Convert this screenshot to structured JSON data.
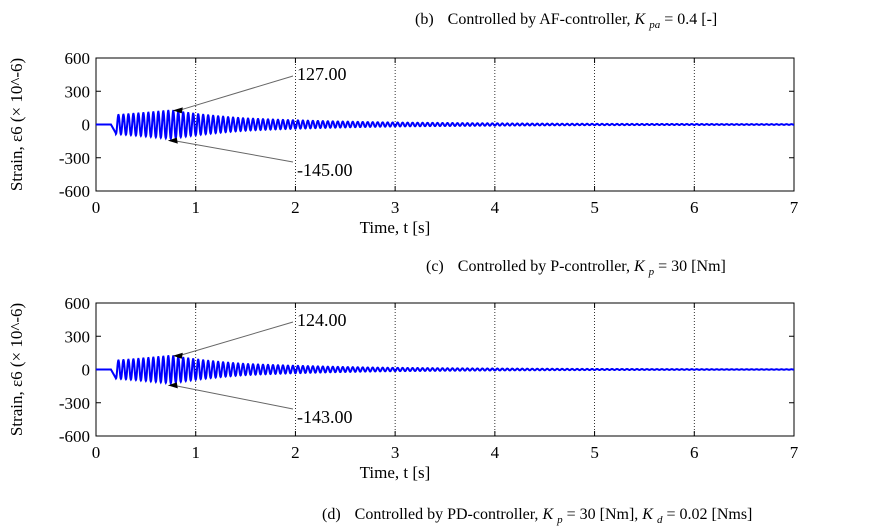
{
  "captions": {
    "top": {
      "label": "(b)",
      "pre": "Controlled by AF-controller, ",
      "k1_main": "K",
      "k1_sub": "pa",
      "k1_val": " = 0.4 [-]"
    },
    "middle": {
      "label": "(c)",
      "pre": "Controlled by P-controller, ",
      "k1_main": "K",
      "k1_sub": "p",
      "k1_val": " = 30 [Nm]"
    },
    "bottom": {
      "label": "(d)",
      "pre": "Controlled by PD-controller, ",
      "k1_main": "K",
      "k1_sub": "p",
      "k1_val": " = 30 [Nm], ",
      "k2_main": "K",
      "k2_sub": "d",
      "k2_val": " = 0.02 [Nms]"
    }
  },
  "chart_data": [
    {
      "type": "line",
      "xlabel": "Time, t [s]",
      "ylabel": "Strain, ε6 (× 10^-6)",
      "xlim": [
        0,
        7
      ],
      "ylim": [
        -600,
        600
      ],
      "xticks": [
        "0",
        "1",
        "2",
        "3",
        "4",
        "5",
        "6",
        "7"
      ],
      "yticks": [
        "600",
        "300",
        "0",
        "-300",
        "-600"
      ],
      "grid": true,
      "series": [
        {
          "color": "#0000ff",
          "decay_envelope": [
            {
              "t": 0.2,
              "amp": 100
            },
            {
              "t": 0.75,
              "amp": 127
            },
            {
              "t": 1.5,
              "amp": 55
            },
            {
              "t": 3,
              "amp": 18
            },
            {
              "t": 5,
              "amp": 6
            },
            {
              "t": 7,
              "amp": 3
            }
          ]
        }
      ],
      "annotations": [
        {
          "text": "127.00",
          "x": 0.75,
          "y": 127
        },
        {
          "text": "-145.00",
          "x": 0.7,
          "y": -145
        }
      ]
    },
    {
      "type": "line",
      "xlabel": "Time, t [s]",
      "ylabel": "Strain, ε6 (× 10^-6)",
      "xlim": [
        0,
        7
      ],
      "ylim": [
        -600,
        600
      ],
      "xticks": [
        "0",
        "1",
        "2",
        "3",
        "4",
        "5",
        "6",
        "7"
      ],
      "yticks": [
        "600",
        "300",
        "0",
        "-300",
        "-600"
      ],
      "grid": true,
      "series": [
        {
          "color": "#0000ff",
          "decay_envelope": [
            {
              "t": 0.2,
              "amp": 95
            },
            {
              "t": 0.75,
              "amp": 124
            },
            {
              "t": 1.5,
              "amp": 50
            },
            {
              "t": 3,
              "amp": 15
            },
            {
              "t": 5,
              "amp": 5
            },
            {
              "t": 7,
              "amp": 2
            }
          ]
        }
      ],
      "annotations": [
        {
          "text": "124.00",
          "x": 0.75,
          "y": 124
        },
        {
          "text": "-143.00",
          "x": 0.7,
          "y": -143
        }
      ]
    }
  ]
}
